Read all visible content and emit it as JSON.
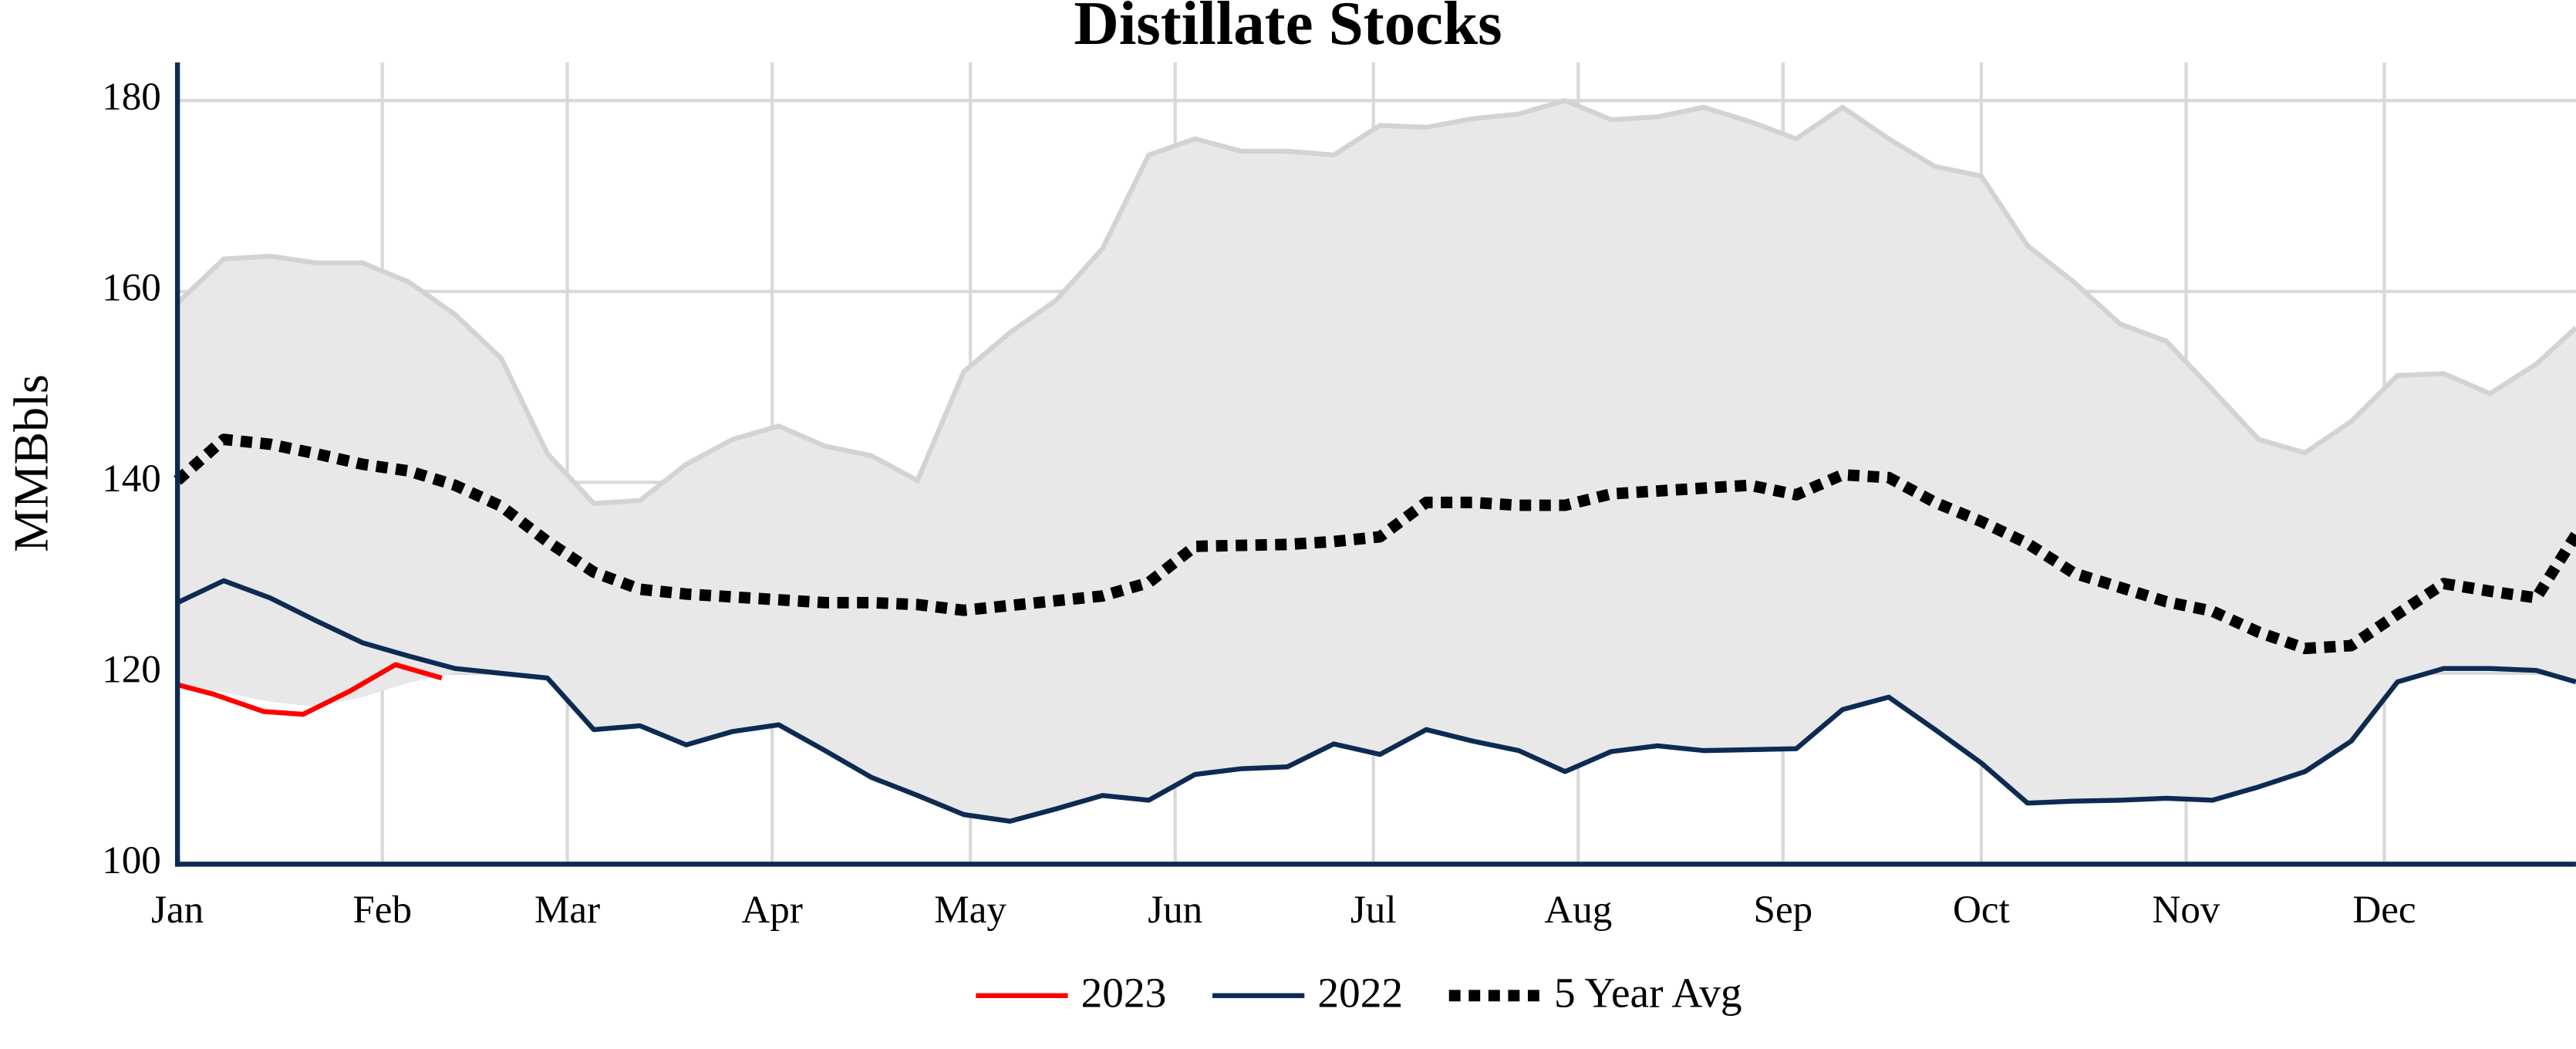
{
  "chart_data": {
    "type": "line",
    "title": "Distillate Stocks",
    "y_label": "MMBbls",
    "xlim": [
      0,
      363
    ],
    "xticks": [
      {
        "value": 0,
        "label": "Jan"
      },
      {
        "value": 31,
        "label": "Feb"
      },
      {
        "value": 59,
        "label": "Mar"
      },
      {
        "value": 90,
        "label": "Apr"
      },
      {
        "value": 120,
        "label": "May"
      },
      {
        "value": 151,
        "label": "Jun"
      },
      {
        "value": 181,
        "label": "Jul"
      },
      {
        "value": 212,
        "label": "Aug"
      },
      {
        "value": 243,
        "label": "Sep"
      },
      {
        "value": 273,
        "label": "Oct"
      },
      {
        "value": 304,
        "label": "Nov"
      },
      {
        "value": 334,
        "label": "Dec"
      }
    ],
    "ylim": [
      100,
      184
    ],
    "yticks": [
      100,
      120,
      140,
      160,
      180
    ],
    "grid": true,
    "band": {
      "color": "#e8e8e8",
      "edge_color": "#d3d3d3",
      "x": [
        0,
        7,
        14,
        21,
        28,
        35,
        42,
        49,
        56,
        63,
        70,
        77,
        84,
        91,
        98,
        105,
        112,
        119,
        126,
        133,
        140,
        147,
        154,
        161,
        168,
        175,
        182,
        189,
        196,
        203,
        210,
        217,
        224,
        231,
        238,
        245,
        252,
        259,
        266,
        273,
        280,
        287,
        294,
        301,
        308,
        315,
        322,
        329,
        336,
        343,
        350,
        357,
        363
      ],
      "high": [
        158.8,
        163.4,
        163.7,
        163,
        163,
        161,
        157.6,
        153,
        143,
        137.8,
        138.1,
        141.9,
        144.5,
        145.9,
        143.8,
        142.8,
        140.2,
        151.6,
        155.7,
        159.1,
        164.5,
        174.3,
        176,
        174.7,
        174.7,
        174.3,
        177.4,
        177.2,
        178.1,
        178.6,
        180,
        178,
        178.3,
        179.3,
        177.8,
        176,
        179.3,
        176,
        173.1,
        172.1,
        164.8,
        161,
        156.6,
        154.8,
        149.7,
        144.5,
        143.1,
        146.4,
        151.2,
        151.4,
        149.3,
        152.4,
        156.2
      ],
      "low": [
        118.5,
        118,
        117,
        116.5,
        117.5,
        119,
        120,
        120,
        119.5,
        114.1,
        114.5,
        112.5,
        113.9,
        114.6,
        111.9,
        109.1,
        107.2,
        105.2,
        104.5,
        105.8,
        107.2,
        106.7,
        109.4,
        110,
        110.2,
        112.6,
        111.5,
        114.1,
        112.9,
        111.9,
        109.7,
        111.8,
        112.4,
        111.9,
        112,
        112.1,
        116.2,
        117.5,
        114.1,
        110.6,
        106.4,
        106.6,
        106.7,
        106.9,
        106.7,
        108.1,
        109.7,
        112.9,
        119.1,
        120.5,
        120.5,
        120.3,
        119.1
      ]
    },
    "series": [
      {
        "name": "2023",
        "color": "#ff0000",
        "style": "solid",
        "x": [
          0,
          5.5,
          13,
          19,
          26,
          33,
          40
        ],
        "values": [
          118.8,
          117.8,
          116,
          115.7,
          118.1,
          120.9,
          119.5
        ]
      },
      {
        "name": "2022",
        "color": "#0d2b52",
        "style": "solid",
        "x": [
          0,
          7,
          14,
          21,
          28,
          35,
          42,
          49,
          56,
          63,
          70,
          77,
          84,
          91,
          98,
          105,
          112,
          119,
          126,
          133,
          140,
          147,
          154,
          161,
          168,
          175,
          182,
          189,
          196,
          203,
          210,
          217,
          224,
          231,
          238,
          245,
          252,
          259,
          266,
          273,
          280,
          287,
          294,
          301,
          308,
          315,
          322,
          329,
          336,
          343,
          350,
          357,
          363
        ],
        "values": [
          127.4,
          129.7,
          127.9,
          125.5,
          123.2,
          121.8,
          120.5,
          120,
          119.5,
          114.1,
          114.5,
          112.5,
          113.9,
          114.6,
          111.9,
          109.1,
          107.2,
          105.2,
          104.5,
          105.8,
          107.2,
          106.7,
          109.4,
          110,
          110.2,
          112.6,
          111.5,
          114.1,
          112.9,
          111.9,
          109.7,
          111.8,
          112.4,
          111.9,
          112,
          112.1,
          116.2,
          117.5,
          114.1,
          110.6,
          106.4,
          106.6,
          106.7,
          106.9,
          106.7,
          108.1,
          109.7,
          112.9,
          119.1,
          120.5,
          120.5,
          120.3,
          119.1
        ]
      },
      {
        "name": "5 Year Avg",
        "color": "#000000",
        "style": "dotted",
        "x": [
          0,
          7,
          14,
          21,
          28,
          35,
          42,
          49,
          56,
          63,
          70,
          77,
          84,
          91,
          98,
          105,
          112,
          119,
          126,
          133,
          140,
          147,
          154,
          161,
          168,
          175,
          182,
          189,
          196,
          203,
          210,
          217,
          224,
          231,
          238,
          245,
          252,
          259,
          266,
          273,
          280,
          287,
          294,
          301,
          308,
          315,
          322,
          329,
          336,
          343,
          350,
          357,
          363
        ],
        "values": [
          140.2,
          144.5,
          144,
          143,
          141.9,
          141.2,
          139.7,
          137.5,
          133.8,
          130.6,
          128.8,
          128.3,
          128,
          127.7,
          127.4,
          127.4,
          127.2,
          126.6,
          127.1,
          127.6,
          128.1,
          129.5,
          133.3,
          133.4,
          133.5,
          133.8,
          134.3,
          137.9,
          137.9,
          137.6,
          137.6,
          138.8,
          139.1,
          139.4,
          139.7,
          138.7,
          140.8,
          140.5,
          137.9,
          135.9,
          133.6,
          130.5,
          129,
          127.5,
          126.5,
          124.3,
          122.6,
          122.9,
          126.2,
          129.4,
          128.6,
          127.9,
          134.5
        ]
      }
    ],
    "axis_color": "#0d2b52",
    "legend": "bottom"
  }
}
